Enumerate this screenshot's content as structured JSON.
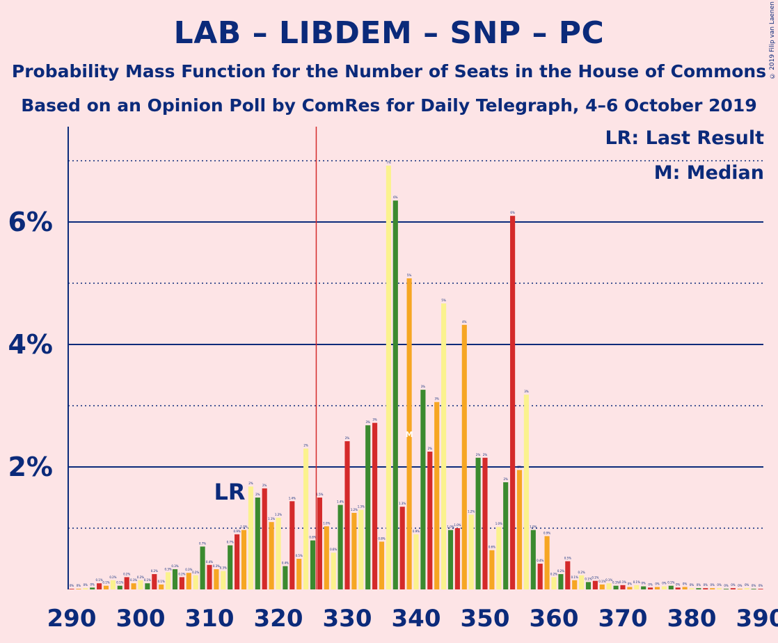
{
  "title": "LAB – LIBDEM – SNP – PC",
  "subtitle1": "Probability Mass Function for the Number of Seats in the House of Commons",
  "subtitle2": "Based on an Opinion Poll by ComRes for Daily Telegraph, 4–6 October 2019",
  "copyright": "© 2019 Filip van Laenen",
  "legend": {
    "lr": "LR: Last Result",
    "median": "M: Median"
  },
  "colors": {
    "background": "#fde4e6",
    "axis": "#0b2a7a",
    "lr_line": "#d42a2a",
    "palette": [
      "#d42a2a",
      "#f6a623",
      "#fbf28e",
      "#3b8a2f"
    ]
  },
  "chart_data": {
    "type": "bar",
    "title": "LAB – LIBDEM – SNP – PC",
    "xlabel": "",
    "ylabel": "",
    "xlim": [
      290,
      390
    ],
    "ylim": [
      0,
      7.5
    ],
    "x_ticks": [
      "290",
      "300",
      "310",
      "320",
      "330",
      "340",
      "350",
      "360",
      "370",
      "380",
      "390"
    ],
    "y_ticks": [
      {
        "value": 2,
        "label": "2%"
      },
      {
        "value": 4,
        "label": "4%"
      },
      {
        "value": 6,
        "label": "6%"
      }
    ],
    "y_minor_dotted": [
      1,
      3,
      5,
      7
    ],
    "last_result": 326,
    "lr_label": "LR",
    "lr_label_at": 315,
    "median": 339,
    "median_label": "M",
    "color_cycle_start": 290,
    "x": [
      290,
      291,
      292,
      293,
      294,
      295,
      296,
      297,
      298,
      299,
      300,
      301,
      302,
      303,
      304,
      305,
      306,
      307,
      308,
      309,
      310,
      311,
      312,
      313,
      314,
      315,
      316,
      317,
      318,
      319,
      320,
      321,
      322,
      323,
      324,
      325,
      326,
      327,
      328,
      329,
      330,
      331,
      332,
      333,
      334,
      335,
      336,
      337,
      338,
      339,
      340,
      341,
      342,
      343,
      344,
      345,
      346,
      347,
      348,
      349,
      350,
      351,
      352,
      353,
      354,
      355,
      356,
      357,
      358,
      359,
      360,
      361,
      362,
      363,
      364,
      365,
      366,
      367,
      368,
      369,
      370,
      371,
      372,
      373,
      374,
      375,
      376,
      377,
      378,
      379,
      380,
      381,
      382,
      383,
      384,
      385,
      386,
      387,
      388,
      389,
      390
    ],
    "values": [
      0.01,
      0.01,
      0.02,
      0.03,
      0.1,
      0.06,
      0.15,
      0.06,
      0.2,
      0.1,
      0.15,
      0.1,
      0.25,
      0.08,
      0.28,
      0.33,
      0.2,
      0.27,
      0.23,
      0.7,
      0.4,
      0.33,
      0.3,
      0.72,
      0.9,
      0.97,
      1.68,
      1.5,
      1.65,
      1.1,
      1.17,
      0.38,
      1.44,
      0.5,
      2.3,
      0.8,
      1.5,
      1.03,
      0.6,
      1.38,
      2.42,
      1.25,
      1.3,
      2.68,
      2.72,
      0.78,
      6.92,
      6.35,
      1.35,
      5.08,
      0.9,
      3.26,
      2.25,
      3.06,
      4.67,
      0.97,
      1.0,
      4.32,
      1.22,
      2.15,
      2.15,
      0.64,
      1.02,
      1.75,
      6.1,
      1.95,
      3.18,
      0.97,
      0.42,
      0.87,
      0.2,
      0.25,
      0.46,
      0.15,
      0.23,
      0.12,
      0.14,
      0.08,
      0.1,
      0.06,
      0.07,
      0.04,
      0.07,
      0.05,
      0.03,
      0.04,
      0.05,
      0.06,
      0.03,
      0.04,
      0.02,
      0.02,
      0.02,
      0.02,
      0.02,
      0.01,
      0.02,
      0.01,
      0.02,
      0.01,
      0.01
    ],
    "data_labels": [
      "0%",
      "0%",
      "0%",
      "0%",
      "0.1%",
      "0.1%",
      "0.2%",
      "0.1%",
      "0.2%",
      "0.1%",
      "0.2%",
      "0.1%",
      "0.2%",
      "0.1%",
      "0.3%",
      "0.3%",
      "0.2%",
      "0.3%",
      "0.2%",
      "0.7%",
      "0.4%",
      "0.3%",
      "0.3%",
      "0.7%",
      "0.9%",
      "1.0%",
      "2%",
      "2%",
      "2%",
      "1.1%",
      "1.2%",
      "0.4%",
      "1.4%",
      "0.5%",
      "2%",
      "0.8%",
      "1.5%",
      "1.0%",
      "0.6%",
      "1.4%",
      "2%",
      "1.2%",
      "1.3%",
      "3%",
      "3%",
      "0.8%",
      "7%",
      "6%",
      "1.3%",
      "5%",
      "0.9%",
      "3%",
      "2%",
      "3%",
      "5%",
      "1.0%",
      "1.0%",
      "4%",
      "1.2%",
      "2%",
      "2%",
      "0.6%",
      "1.0%",
      "2%",
      "6%",
      "2%",
      "3%",
      "1.0%",
      "0.4%",
      "0.9%",
      "0.2%",
      "0.2%",
      "0.5%",
      "0.1%",
      "0.2%",
      "0.1%",
      "0.1%",
      "0.1%",
      "0.1%",
      "0.1%",
      "0.1%",
      "0%",
      "0.1%",
      "0%",
      "0%",
      "0%",
      "0%",
      "0.1%",
      "0%",
      "0%",
      "0%",
      "0%",
      "0%",
      "0%",
      "0%",
      "0%",
      "0%",
      "0%",
      "0%",
      "0%",
      "0%"
    ]
  }
}
